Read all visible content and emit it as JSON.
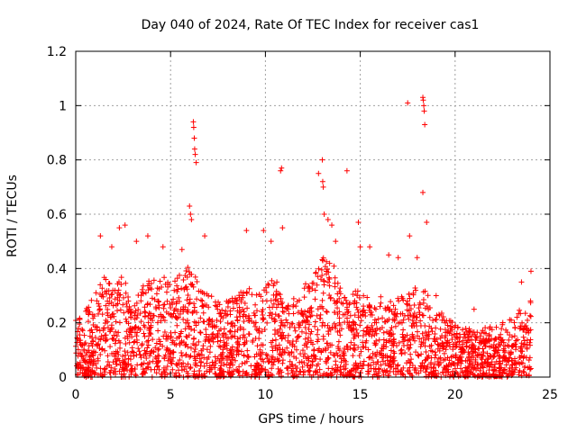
{
  "chart_data": {
    "type": "scatter",
    "title": "Day 040 of 2024, Rate Of TEC Index for receiver cas1",
    "xlabel": "GPS time / hours",
    "ylabel": "ROTI / TECUs",
    "xlim": [
      0,
      25
    ],
    "ylim": [
      0,
      1.2
    ],
    "xticks": [
      0,
      5,
      10,
      15,
      20,
      25
    ],
    "yticks": [
      0,
      0.2,
      0.4,
      0.6,
      0.8,
      1,
      1.2
    ],
    "xtick_labels": [
      "0",
      "5",
      "10",
      "15",
      "20",
      "25"
    ],
    "ytick_labels": [
      "0",
      "0.2",
      "0.4",
      "0.6",
      "0.8",
      "1",
      "1.2"
    ],
    "grid": true,
    "marker": "plus",
    "color": "#ff0000",
    "envelope": [
      [
        0.0,
        0.22
      ],
      [
        0.5,
        0.25
      ],
      [
        1.0,
        0.3
      ],
      [
        1.5,
        0.38
      ],
      [
        2.0,
        0.34
      ],
      [
        2.5,
        0.38
      ],
      [
        3.0,
        0.25
      ],
      [
        3.5,
        0.34
      ],
      [
        4.0,
        0.36
      ],
      [
        4.5,
        0.4
      ],
      [
        5.0,
        0.34
      ],
      [
        5.5,
        0.38
      ],
      [
        6.0,
        0.42
      ],
      [
        6.5,
        0.34
      ],
      [
        7.0,
        0.3
      ],
      [
        7.5,
        0.3
      ],
      [
        8.0,
        0.28
      ],
      [
        8.5,
        0.3
      ],
      [
        9.0,
        0.34
      ],
      [
        9.5,
        0.3
      ],
      [
        10.0,
        0.34
      ],
      [
        10.5,
        0.38
      ],
      [
        11.0,
        0.26
      ],
      [
        11.5,
        0.3
      ],
      [
        12.0,
        0.34
      ],
      [
        12.5,
        0.36
      ],
      [
        13.0,
        0.44
      ],
      [
        13.5,
        0.44
      ],
      [
        14.0,
        0.32
      ],
      [
        14.5,
        0.3
      ],
      [
        15.0,
        0.34
      ],
      [
        15.5,
        0.28
      ],
      [
        16.0,
        0.3
      ],
      [
        16.5,
        0.28
      ],
      [
        17.0,
        0.3
      ],
      [
        17.5,
        0.3
      ],
      [
        18.0,
        0.34
      ],
      [
        18.5,
        0.32
      ],
      [
        19.0,
        0.26
      ],
      [
        19.5,
        0.22
      ],
      [
        20.0,
        0.2
      ],
      [
        20.5,
        0.18
      ],
      [
        21.0,
        0.18
      ],
      [
        21.5,
        0.2
      ],
      [
        22.0,
        0.18
      ],
      [
        22.5,
        0.2
      ],
      [
        23.0,
        0.22
      ],
      [
        23.5,
        0.26
      ],
      [
        24.0,
        0.3
      ]
    ],
    "outliers": [
      [
        1.3,
        0.52
      ],
      [
        1.9,
        0.48
      ],
      [
        2.3,
        0.55
      ],
      [
        2.6,
        0.56
      ],
      [
        3.2,
        0.5
      ],
      [
        3.8,
        0.52
      ],
      [
        4.6,
        0.48
      ],
      [
        5.6,
        0.47
      ],
      [
        6.0,
        0.63
      ],
      [
        6.05,
        0.6
      ],
      [
        6.1,
        0.58
      ],
      [
        6.2,
        0.94
      ],
      [
        6.22,
        0.92
      ],
      [
        6.25,
        0.88
      ],
      [
        6.27,
        0.84
      ],
      [
        6.3,
        0.82
      ],
      [
        6.35,
        0.79
      ],
      [
        6.8,
        0.52
      ],
      [
        9.0,
        0.54
      ],
      [
        9.9,
        0.54
      ],
      [
        10.3,
        0.5
      ],
      [
        10.8,
        0.76
      ],
      [
        10.85,
        0.77
      ],
      [
        10.9,
        0.55
      ],
      [
        12.8,
        0.75
      ],
      [
        13.0,
        0.8
      ],
      [
        13.02,
        0.72
      ],
      [
        13.05,
        0.7
      ],
      [
        13.1,
        0.6
      ],
      [
        13.3,
        0.58
      ],
      [
        13.5,
        0.56
      ],
      [
        13.7,
        0.5
      ],
      [
        14.3,
        0.76
      ],
      [
        14.9,
        0.57
      ],
      [
        15.0,
        0.48
      ],
      [
        15.5,
        0.48
      ],
      [
        16.5,
        0.45
      ],
      [
        17.0,
        0.44
      ],
      [
        17.5,
        1.01
      ],
      [
        17.6,
        0.52
      ],
      [
        18.3,
        1.03
      ],
      [
        18.32,
        1.02
      ],
      [
        18.35,
        1.0
      ],
      [
        18.37,
        0.98
      ],
      [
        18.4,
        0.93
      ],
      [
        18.3,
        0.68
      ],
      [
        18.5,
        0.57
      ],
      [
        18.0,
        0.44
      ],
      [
        19.0,
        0.3
      ],
      [
        21.0,
        0.25
      ],
      [
        23.5,
        0.35
      ],
      [
        24.0,
        0.39
      ]
    ]
  }
}
